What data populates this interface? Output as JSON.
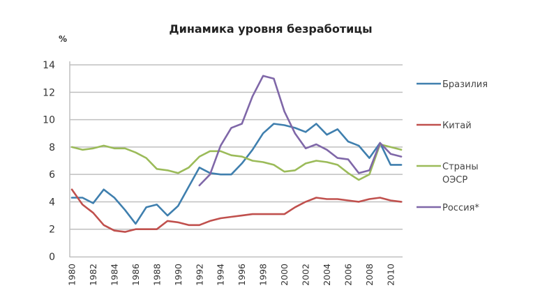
{
  "chart_data": {
    "type": "line",
    "title": "Динамика уровня безработицы",
    "xlabel": "",
    "ylabel": "%",
    "ylim": [
      0,
      14
    ],
    "yticks": [
      0,
      2,
      4,
      6,
      8,
      10,
      12,
      14
    ],
    "xlim": [
      1980,
      2011
    ],
    "xticks": [
      1980,
      1982,
      1984,
      1986,
      1988,
      1990,
      1992,
      1994,
      1996,
      1998,
      2000,
      2002,
      2004,
      2006,
      2008,
      2010
    ],
    "grid": true,
    "legend_position": "right",
    "x": [
      1980,
      1981,
      1982,
      1983,
      1984,
      1985,
      1986,
      1987,
      1988,
      1989,
      1990,
      1991,
      1992,
      1993,
      1994,
      1995,
      1996,
      1997,
      1998,
      1999,
      2000,
      2001,
      2002,
      2003,
      2004,
      2005,
      2006,
      2007,
      2008,
      2009,
      2010,
      2011
    ],
    "series": [
      {
        "name": "Бразилия",
        "color": "#3f7fae",
        "values": [
          4.3,
          4.3,
          3.9,
          4.9,
          4.3,
          3.4,
          2.4,
          3.6,
          3.8,
          3.0,
          3.7,
          5.1,
          6.5,
          6.1,
          6.0,
          6.0,
          6.8,
          7.8,
          9.0,
          9.7,
          9.6,
          9.4,
          9.1,
          9.7,
          8.9,
          9.3,
          8.4,
          8.1,
          7.2,
          8.3,
          6.7,
          6.7
        ]
      },
      {
        "name": "Китай",
        "color": "#c0504d",
        "values": [
          4.9,
          3.8,
          3.2,
          2.3,
          1.9,
          1.8,
          2.0,
          2.0,
          2.0,
          2.6,
          2.5,
          2.3,
          2.3,
          2.6,
          2.8,
          2.9,
          3.0,
          3.1,
          3.1,
          3.1,
          3.1,
          3.6,
          4.0,
          4.3,
          4.2,
          4.2,
          4.1,
          4.0,
          4.2,
          4.3,
          4.1,
          4.0
        ]
      },
      {
        "name": "Страны ОЭСР",
        "color": "#9bbb59",
        "values": [
          8.0,
          7.8,
          7.9,
          8.1,
          7.9,
          7.9,
          7.6,
          7.2,
          6.4,
          6.3,
          6.1,
          6.5,
          7.3,
          7.7,
          7.7,
          7.4,
          7.3,
          7.0,
          6.9,
          6.7,
          6.2,
          6.3,
          6.8,
          7.0,
          6.9,
          6.7,
          6.1,
          5.6,
          6.0,
          8.2,
          8.0,
          7.8
        ]
      },
      {
        "name": "Россия*",
        "color": "#7f67a8",
        "values": [
          null,
          null,
          null,
          null,
          null,
          null,
          null,
          null,
          null,
          null,
          null,
          null,
          5.2,
          6.0,
          8.1,
          9.4,
          9.7,
          11.7,
          13.2,
          13.0,
          10.6,
          9.0,
          7.9,
          8.2,
          7.8,
          7.2,
          7.1,
          6.1,
          6.3,
          8.3,
          7.5,
          7.3
        ]
      }
    ]
  },
  "labels": {
    "title": "Динамика уровня безработицы",
    "unit": "%",
    "legend": [
      {
        "line1": "Бразилия",
        "line2": ""
      },
      {
        "line1": "Китай",
        "line2": ""
      },
      {
        "line1": "Страны",
        "line2": "ОЭСР"
      },
      {
        "line1": "Россия*",
        "line2": ""
      }
    ]
  }
}
